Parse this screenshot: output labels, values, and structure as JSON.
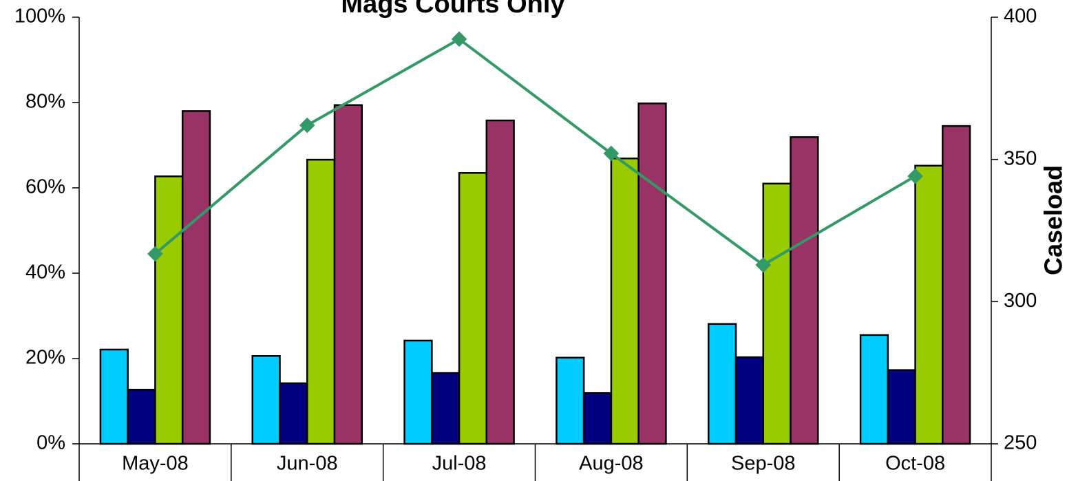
{
  "chart_data": {
    "type": "bar",
    "title": "Mags Courts Only",
    "y2label": "Caseload",
    "categories": [
      "May-08",
      "Jun-08",
      "Jul-08",
      "Aug-08",
      "Sep-08",
      "Oct-08"
    ],
    "series": [
      {
        "color": "#00ccff",
        "values": [
          22.1,
          20.6,
          24.2,
          20.2,
          28.1,
          25.5
        ]
      },
      {
        "color": "#000080",
        "values": [
          12.7,
          14.2,
          16.6,
          11.9,
          20.3,
          17.3
        ]
      },
      {
        "color": "#99cc00",
        "values": [
          62.7,
          66.6,
          63.5,
          66.9,
          61,
          65.2
        ]
      },
      {
        "color": "#993366",
        "values": [
          78,
          79.4,
          75.8,
          79.8,
          71.9,
          74.5
        ]
      },
      {
        "type": "line",
        "axis": "y2",
        "color": "#339966",
        "values": [
          316.8,
          362,
          392.3,
          352.1,
          312.9,
          344.1
        ]
      }
    ],
    "ylim": [
      0,
      100
    ],
    "yticks": [
      {
        "value": 0,
        "label": "0%"
      },
      {
        "value": 20,
        "label": "20%"
      },
      {
        "value": 40,
        "label": "40%"
      },
      {
        "value": 60,
        "label": "60%"
      },
      {
        "value": 80,
        "label": "80%"
      },
      {
        "value": 100,
        "label": "100%"
      }
    ],
    "y2lim": [
      250,
      400
    ],
    "y2ticks": [
      250,
      300,
      350,
      400
    ]
  }
}
